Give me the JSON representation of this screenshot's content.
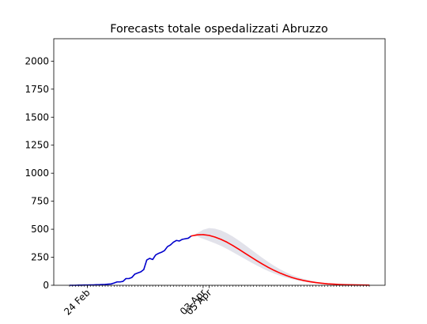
{
  "chart_data": {
    "type": "line",
    "title": "Forecasts totale ospedalizzati Abruzzo",
    "xlabel": "",
    "ylabel": "",
    "x_axis": {
      "kind": "date",
      "range": [
        "2020-02-18",
        "2020-05-29"
      ],
      "labeled_ticks": [
        {
          "date": "2020-02-24",
          "label": "24 Feb"
        },
        {
          "date": "2020-04-03",
          "label": "03 Apr"
        },
        {
          "date": "2020-04-05",
          "label": "05 Apr"
        }
      ],
      "minor_ticks": "daily"
    },
    "y_axis": {
      "range": [
        0,
        2200
      ],
      "ticks": [
        0,
        250,
        500,
        750,
        1000,
        1250,
        1500,
        1750,
        2000
      ]
    },
    "grid": false,
    "legend": "none",
    "colors": {
      "observed": "#0000cc",
      "forecast": "#ff0000",
      "band": "#e2e2ea"
    },
    "series": [
      {
        "role": "observed",
        "color": "#0000cc",
        "points": [
          [
            "2020-02-18",
            0
          ],
          [
            "2020-02-19",
            0
          ],
          [
            "2020-02-20",
            0
          ],
          [
            "2020-02-21",
            1
          ],
          [
            "2020-02-22",
            1
          ],
          [
            "2020-02-23",
            2
          ],
          [
            "2020-02-24",
            2
          ],
          [
            "2020-02-25",
            3
          ],
          [
            "2020-02-26",
            3
          ],
          [
            "2020-02-27",
            5
          ],
          [
            "2020-02-28",
            5
          ],
          [
            "2020-02-29",
            7
          ],
          [
            "2020-03-01",
            8
          ],
          [
            "2020-03-02",
            10
          ],
          [
            "2020-03-03",
            12
          ],
          [
            "2020-03-04",
            20
          ],
          [
            "2020-03-05",
            30
          ],
          [
            "2020-03-06",
            30
          ],
          [
            "2020-03-07",
            35
          ],
          [
            "2020-03-08",
            60
          ],
          [
            "2020-03-09",
            60
          ],
          [
            "2020-03-10",
            70
          ],
          [
            "2020-03-11",
            100
          ],
          [
            "2020-03-12",
            110
          ],
          [
            "2020-03-13",
            120
          ],
          [
            "2020-03-14",
            140
          ],
          [
            "2020-03-15",
            225
          ],
          [
            "2020-03-16",
            240
          ],
          [
            "2020-03-17",
            230
          ],
          [
            "2020-03-18",
            270
          ],
          [
            "2020-03-19",
            285
          ],
          [
            "2020-03-20",
            295
          ],
          [
            "2020-03-21",
            310
          ],
          [
            "2020-03-22",
            345
          ],
          [
            "2020-03-23",
            360
          ],
          [
            "2020-03-24",
            385
          ],
          [
            "2020-03-25",
            400
          ],
          [
            "2020-03-26",
            395
          ],
          [
            "2020-03-27",
            410
          ],
          [
            "2020-03-28",
            415
          ],
          [
            "2020-03-29",
            420
          ],
          [
            "2020-03-30",
            440
          ]
        ]
      },
      {
        "role": "forecast",
        "color": "#ff0000",
        "points": [
          [
            "2020-03-30",
            440
          ],
          [
            "2020-04-01",
            450
          ],
          [
            "2020-04-03",
            452
          ],
          [
            "2020-04-05",
            445
          ],
          [
            "2020-04-07",
            430
          ],
          [
            "2020-04-09",
            410
          ],
          [
            "2020-04-11",
            385
          ],
          [
            "2020-04-13",
            355
          ],
          [
            "2020-04-15",
            322
          ],
          [
            "2020-04-17",
            288
          ],
          [
            "2020-04-19",
            254
          ],
          [
            "2020-04-21",
            221
          ],
          [
            "2020-04-23",
            189
          ],
          [
            "2020-04-25",
            159
          ],
          [
            "2020-04-27",
            132
          ],
          [
            "2020-04-29",
            108
          ],
          [
            "2020-05-01",
            87
          ],
          [
            "2020-05-03",
            69
          ],
          [
            "2020-05-05",
            54
          ],
          [
            "2020-05-07",
            42
          ],
          [
            "2020-05-09",
            32
          ],
          [
            "2020-05-11",
            24
          ],
          [
            "2020-05-13",
            18
          ],
          [
            "2020-05-15",
            13
          ],
          [
            "2020-05-17",
            10
          ],
          [
            "2020-05-19",
            7
          ],
          [
            "2020-05-21",
            5
          ],
          [
            "2020-05-23",
            4
          ],
          [
            "2020-05-25",
            3
          ],
          [
            "2020-05-27",
            2
          ],
          [
            "2020-05-29",
            1
          ]
        ]
      }
    ],
    "confidence_band": {
      "color": "#e2e2ea",
      "upper": [
        [
          "2020-03-30",
          440
        ],
        [
          "2020-04-01",
          465
        ],
        [
          "2020-04-03",
          495
        ],
        [
          "2020-04-05",
          510
        ],
        [
          "2020-04-07",
          505
        ],
        [
          "2020-04-09",
          490
        ],
        [
          "2020-04-11",
          465
        ],
        [
          "2020-04-13",
          435
        ],
        [
          "2020-04-15",
          400
        ],
        [
          "2020-04-17",
          362
        ],
        [
          "2020-04-19",
          323
        ],
        [
          "2020-04-21",
          283
        ],
        [
          "2020-04-23",
          244
        ],
        [
          "2020-04-25",
          207
        ],
        [
          "2020-04-27",
          173
        ],
        [
          "2020-04-29",
          142
        ],
        [
          "2020-05-01",
          115
        ],
        [
          "2020-05-03",
          92
        ],
        [
          "2020-05-05",
          72
        ],
        [
          "2020-05-07",
          56
        ],
        [
          "2020-05-09",
          43
        ],
        [
          "2020-05-11",
          32
        ],
        [
          "2020-05-13",
          24
        ],
        [
          "2020-05-15",
          18
        ],
        [
          "2020-05-17",
          13
        ],
        [
          "2020-05-19",
          9
        ],
        [
          "2020-05-21",
          7
        ],
        [
          "2020-05-23",
          5
        ],
        [
          "2020-05-25",
          4
        ],
        [
          "2020-05-27",
          3
        ],
        [
          "2020-05-29",
          2
        ]
      ],
      "lower": [
        [
          "2020-03-30",
          440
        ],
        [
          "2020-04-01",
          435
        ],
        [
          "2020-04-03",
          415
        ],
        [
          "2020-04-05",
          395
        ],
        [
          "2020-04-07",
          375
        ],
        [
          "2020-04-09",
          352
        ],
        [
          "2020-04-11",
          325
        ],
        [
          "2020-04-13",
          296
        ],
        [
          "2020-04-15",
          266
        ],
        [
          "2020-04-17",
          236
        ],
        [
          "2020-04-19",
          206
        ],
        [
          "2020-04-21",
          178
        ],
        [
          "2020-04-23",
          151
        ],
        [
          "2020-04-25",
          126
        ],
        [
          "2020-04-27",
          104
        ],
        [
          "2020-04-29",
          85
        ],
        [
          "2020-05-01",
          68
        ],
        [
          "2020-05-03",
          54
        ],
        [
          "2020-05-05",
          42
        ],
        [
          "2020-05-07",
          32
        ],
        [
          "2020-05-09",
          24
        ],
        [
          "2020-05-11",
          18
        ],
        [
          "2020-05-13",
          13
        ],
        [
          "2020-05-15",
          9
        ],
        [
          "2020-05-17",
          7
        ],
        [
          "2020-05-19",
          5
        ],
        [
          "2020-05-21",
          3
        ],
        [
          "2020-05-23",
          2
        ],
        [
          "2020-05-25",
          2
        ],
        [
          "2020-05-27",
          1
        ],
        [
          "2020-05-29",
          1
        ]
      ]
    }
  }
}
